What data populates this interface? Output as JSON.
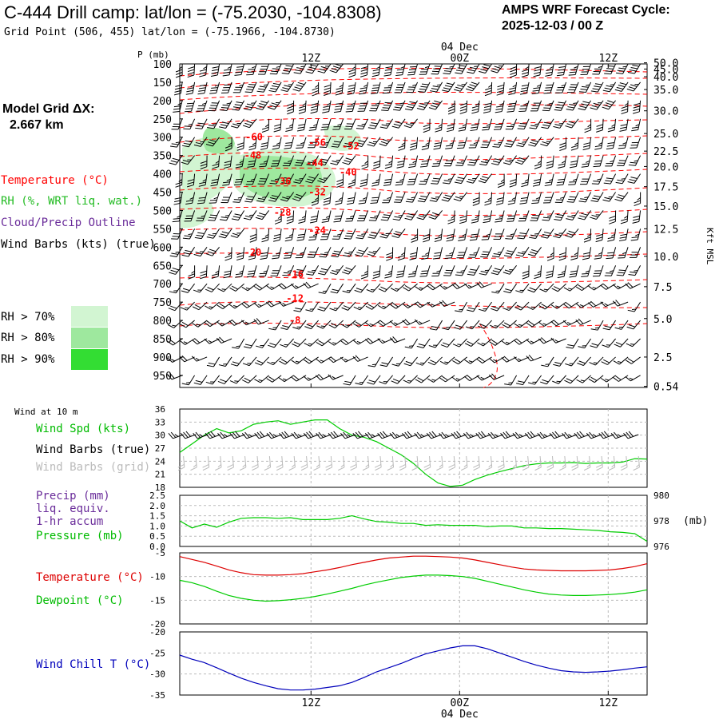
{
  "header": {
    "title": "C-444 Drill camp:  lat/lon = (-75.2030, -104.8308)",
    "subtitle": "Grid Point (506, 455) lat/lon = (-75.1966, -104.8730)",
    "cycle_label": "AMPS WRF Forecast Cycle:",
    "cycle_value": "2025-12-03 / 00  Z"
  },
  "side": {
    "grid_label": "Model Grid ΔX:",
    "grid_value": "2.667 km",
    "legend": {
      "temperature": "Temperature (°C)",
      "rh": "RH (%, WRT liq. wat.)",
      "cloud": "Cloud/Precip Outline",
      "wind": "Wind Barbs (kts) (true)"
    },
    "rh_levels": [
      {
        "label": "RH > 70%",
        "color": "#d2f5d2"
      },
      {
        "label": "RH > 80%",
        "color": "#9ee89e"
      },
      {
        "label": "RH > 90%",
        "color": "#33dd33"
      }
    ]
  },
  "colors": {
    "temperature": "#ff0000",
    "rh": "#22bb22",
    "cloud": "#6a2c9a",
    "dewpoint": "#00cc00",
    "windchill": "#0000bb",
    "grid": "#bbbbbb"
  },
  "time_axis": {
    "top_date": "04 Dec",
    "bottom_date": "04 Dec",
    "ticks": [
      "12Z",
      "00Z",
      "12Z"
    ]
  },
  "chart_data": [
    {
      "id": "cross-section",
      "type": "contour",
      "ylabel": "P (mb)",
      "right_label": "Kft MSL",
      "pressure_levels": [
        100,
        150,
        200,
        250,
        300,
        350,
        400,
        450,
        500,
        550,
        600,
        650,
        700,
        750,
        800,
        850,
        900,
        950
      ],
      "kft_labels": [
        "50.0",
        "45.0",
        "40.0",
        "35.0",
        "30.0",
        "25.0",
        "22.5",
        "20.0",
        "17.5",
        "15.0",
        "12.5",
        "10.0",
        "7.5",
        "5.0",
        "2.5",
        "0.54"
      ],
      "kft_pressure": [
        97,
        114,
        135,
        170,
        228,
        290,
        338,
        380,
        435,
        488,
        550,
        625,
        708,
        795,
        900,
        980
      ],
      "temp_labels": [
        {
          "t": 6.4,
          "p": 300,
          "text": "-60"
        },
        {
          "t": 11.5,
          "p": 315,
          "text": "-56"
        },
        {
          "t": 14.2,
          "p": 325,
          "text": "-52"
        },
        {
          "t": 6.3,
          "p": 350,
          "text": "-48"
        },
        {
          "t": 11.3,
          "p": 370,
          "text": "-44"
        },
        {
          "t": 14.0,
          "p": 395,
          "text": "-40"
        },
        {
          "t": 8.7,
          "p": 420,
          "text": "-36"
        },
        {
          "t": 11.5,
          "p": 450,
          "text": "-32"
        },
        {
          "t": 8.7,
          "p": 505,
          "text": "-28"
        },
        {
          "t": 11.5,
          "p": 555,
          "text": "-24"
        },
        {
          "t": 6.3,
          "p": 615,
          "text": "-20"
        },
        {
          "t": 9.7,
          "p": 675,
          "text": "-16"
        },
        {
          "t": 9.7,
          "p": 740,
          "text": "-12"
        },
        {
          "t": 9.7,
          "p": 800,
          "text": "-8"
        }
      ]
    },
    {
      "id": "wind-speed",
      "type": "line",
      "caption": "Wind at 10 m",
      "labels": {
        "speed": "Wind Spd (kts)",
        "barbs_true": "Wind Barbs (true)",
        "barbs_grid": "Wind Barbs (grid)"
      },
      "yticks": [
        "36",
        "33",
        "30",
        "27",
        "24",
        "21",
        "18"
      ],
      "ylim": [
        18,
        36
      ],
      "x": [
        0,
        1,
        2,
        3,
        4,
        5,
        6,
        7,
        8,
        9,
        10,
        11,
        12,
        13,
        14,
        15,
        16,
        17,
        18,
        19,
        20,
        21,
        22,
        23,
        24,
        25,
        26,
        27,
        28,
        29,
        30,
        31,
        32,
        33,
        34,
        35,
        36,
        37,
        38
      ],
      "values": [
        26,
        28,
        30,
        31.5,
        30.5,
        31,
        32.5,
        33,
        33.3,
        32.5,
        33,
        33.5,
        33.5,
        31.5,
        30,
        29.5,
        28.5,
        27,
        25.5,
        23.5,
        21,
        19,
        18.2,
        18.5,
        19.8,
        20.8,
        21.6,
        22.3,
        23,
        23.4,
        23.6,
        23.6,
        23.7,
        23.5,
        23.6,
        23.6,
        23.8,
        24.6,
        24.5
      ]
    },
    {
      "id": "pressure",
      "type": "line",
      "labels": {
        "precip": "Precip (mm)",
        "liq": "liq. equiv.",
        "accum": "1-hr accum",
        "pressure": "Pressure (mb)"
      },
      "left_ticks": [
        "2.5",
        "2.0",
        "1.5",
        "1.0",
        "0.5",
        "0.0"
      ],
      "right_ticks": [
        "980",
        "978",
        "976"
      ],
      "right_unit": "(mb)",
      "ylim": [
        976,
        980
      ],
      "x": [
        0,
        1,
        2,
        3,
        4,
        5,
        6,
        7,
        8,
        9,
        10,
        11,
        12,
        13,
        14,
        15,
        16,
        17,
        18,
        19,
        20,
        21,
        22,
        23,
        24,
        25,
        26,
        27,
        28,
        29,
        30,
        31,
        32,
        33,
        34,
        35,
        36,
        37,
        38
      ],
      "values": [
        978.0,
        977.45,
        977.75,
        977.5,
        977.9,
        978.2,
        978.25,
        978.25,
        978.2,
        978.25,
        978.1,
        978.1,
        978.1,
        978.2,
        978.4,
        978.15,
        977.95,
        977.9,
        977.8,
        977.8,
        977.65,
        977.7,
        977.65,
        977.65,
        977.65,
        977.55,
        977.6,
        977.6,
        977.45,
        977.45,
        977.4,
        977.4,
        977.35,
        977.3,
        977.25,
        977.15,
        977.1,
        977.0,
        976.4
      ]
    },
    {
      "id": "temperature",
      "type": "line",
      "labels": {
        "temperature": "Temperature (°C)",
        "dewpoint": "Dewpoint (°C)"
      },
      "yticks": [
        "-5",
        "-10",
        "-15",
        "-20"
      ],
      "ylim": [
        -20,
        -5
      ],
      "series": [
        {
          "name": "Temperature",
          "values": [
            -5.8,
            -6.4,
            -7.0,
            -7.8,
            -8.6,
            -9.2,
            -9.6,
            -9.7,
            -9.7,
            -9.6,
            -9.4,
            -9.0,
            -8.6,
            -8.1,
            -7.5,
            -7.0,
            -6.5,
            -6.1,
            -5.9,
            -5.7,
            -5.7,
            -5.8,
            -5.9,
            -6.1,
            -6.5,
            -7.0,
            -7.5,
            -8.0,
            -8.4,
            -8.6,
            -8.7,
            -8.8,
            -8.8,
            -8.8,
            -8.7,
            -8.6,
            -8.3,
            -7.9,
            -7.3
          ]
        },
        {
          "name": "Dewpoint",
          "values": [
            -10.8,
            -11.3,
            -12.1,
            -13.1,
            -14.0,
            -14.6,
            -15.0,
            -15.2,
            -15.1,
            -14.9,
            -14.6,
            -14.2,
            -13.7,
            -13.1,
            -12.5,
            -11.8,
            -11.2,
            -10.7,
            -10.2,
            -9.9,
            -9.7,
            -9.7,
            -9.8,
            -10.0,
            -10.4,
            -11.0,
            -11.6,
            -12.2,
            -12.8,
            -13.3,
            -13.7,
            -13.9,
            -14.0,
            -14.0,
            -13.9,
            -13.8,
            -13.6,
            -13.3,
            -12.8
          ]
        }
      ]
    },
    {
      "id": "wind-chill",
      "type": "line",
      "labels": {
        "windchill": "Wind Chill T (°C)"
      },
      "yticks": [
        "-20",
        "-25",
        "-30",
        "-35"
      ],
      "ylim": [
        -35,
        -20
      ],
      "values": [
        -25.5,
        -26.5,
        -27.3,
        -28.5,
        -29.8,
        -31.0,
        -32.0,
        -32.8,
        -33.5,
        -33.8,
        -33.8,
        -33.6,
        -33.2,
        -32.8,
        -32.0,
        -30.8,
        -29.5,
        -28.5,
        -27.5,
        -26.3,
        -25.2,
        -24.5,
        -23.8,
        -23.3,
        -23.3,
        -24.0,
        -25.0,
        -26.0,
        -27.0,
        -27.9,
        -28.6,
        -29.2,
        -29.5,
        -29.6,
        -29.5,
        -29.3,
        -29.0,
        -28.6,
        -28.3
      ]
    }
  ]
}
